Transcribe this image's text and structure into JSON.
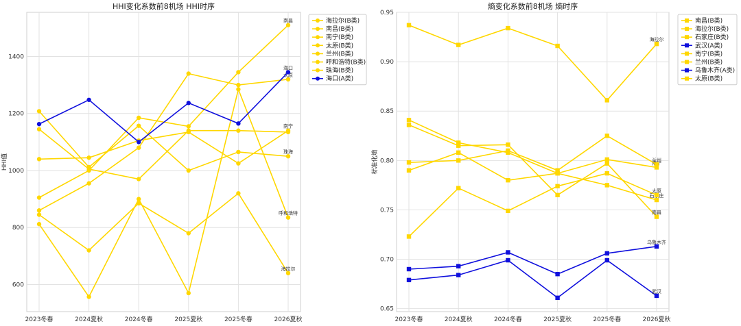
{
  "chart_data": [
    {
      "type": "line",
      "title": "HHI变化系数前8机场 HHI时序",
      "xlabel": "",
      "ylabel": "HHI值",
      "categories": [
        "2023冬春",
        "2024夏秋",
        "2024冬春",
        "2025夏秋",
        "2025冬春",
        "2026夏秋"
      ],
      "ylim": [
        505,
        1555
      ],
      "yticks": [
        600,
        800,
        1000,
        1200,
        1400
      ],
      "grid": true,
      "legend_position": "outside-right",
      "marker": "circle",
      "colors": {
        "B": "#FFD700",
        "A": "#1010DD"
      },
      "series": [
        {
          "name": "海拉尔(B类)",
          "class": "B",
          "end_label": "海拉尔",
          "values": [
            845,
            720,
            885,
            780,
            920,
            640
          ]
        },
        {
          "name": "南昌(B类)",
          "class": "B",
          "end_label": "南昌",
          "values": [
            905,
            1000,
            1185,
            1155,
            1345,
            1510
          ]
        },
        {
          "name": "南宁(B类)",
          "class": "B",
          "end_label": "南宁",
          "values": [
            1040,
            1045,
            1105,
            1135,
            1025,
            1140
          ]
        },
        {
          "name": "太原(B类)",
          "class": "B",
          "end_label": "太原",
          "values": [
            860,
            955,
            1080,
            1340,
            1300,
            1320
          ]
        },
        {
          "name": "兰州(B类)",
          "class": "B",
          "end_label": "",
          "values": [
            1145,
            1005,
            970,
            1140,
            1140,
            1135
          ]
        },
        {
          "name": "呼和浩特(B类)",
          "class": "B",
          "end_label": "呼和浩特",
          "values": [
            812,
            557,
            900,
            570,
            1285,
            835
          ]
        },
        {
          "name": "珠海(B类)",
          "class": "B",
          "end_label": "珠海",
          "values": [
            1208,
            1012,
            1157,
            1000,
            1065,
            1050
          ]
        },
        {
          "name": "海口(A类)",
          "class": "A",
          "end_label": "海口",
          "values": [
            1163,
            1248,
            1100,
            1237,
            1165,
            1345
          ]
        }
      ]
    },
    {
      "type": "line",
      "title": "熵变化系数前8机场 熵时序",
      "xlabel": "",
      "ylabel": "标准化熵",
      "categories": [
        "2023冬春",
        "2024夏秋",
        "2024冬春",
        "2025夏秋",
        "2025冬春",
        "2026夏秋"
      ],
      "ylim": [
        0.647,
        0.95
      ],
      "yticks": [
        0.65,
        0.7,
        0.75,
        0.8,
        0.85,
        0.9,
        0.95
      ],
      "grid": true,
      "legend_position": "outside-right",
      "marker": "square",
      "colors": {
        "B": "#FFD700",
        "A": "#1010DD"
      },
      "series": [
        {
          "name": "南昌(B类)",
          "class": "B",
          "end_label": "南昌",
          "values": [
            0.836,
            0.815,
            0.816,
            0.765,
            0.797,
            0.743
          ]
        },
        {
          "name": "海拉尔(B类)",
          "class": "B",
          "end_label": "海拉尔",
          "values": [
            0.937,
            0.917,
            0.934,
            0.916,
            0.861,
            0.918
          ]
        },
        {
          "name": "石家庄(B类)",
          "class": "B",
          "end_label": "石家庄",
          "values": [
            0.841,
            0.818,
            0.808,
            0.787,
            0.775,
            0.76
          ]
        },
        {
          "name": "武汉(A类)",
          "class": "A",
          "end_label": "武汉",
          "values": [
            0.679,
            0.684,
            0.699,
            0.661,
            0.699,
            0.663
          ]
        },
        {
          "name": "南宁(B类)",
          "class": "B",
          "end_label": "南宁",
          "values": [
            0.79,
            0.808,
            0.78,
            0.787,
            0.801,
            0.793
          ]
        },
        {
          "name": "兰州(B类)",
          "class": "B",
          "end_label": "兰州",
          "values": [
            0.798,
            0.8,
            0.81,
            0.79,
            0.825,
            0.796
          ]
        },
        {
          "name": "乌鲁木齐(A类)",
          "class": "A",
          "end_label": "乌鲁木齐",
          "values": [
            0.69,
            0.693,
            0.707,
            0.685,
            0.706,
            0.713
          ]
        },
        {
          "name": "太原(B类)",
          "class": "B",
          "end_label": "太原",
          "values": [
            0.723,
            0.772,
            0.749,
            0.774,
            0.787,
            0.765
          ]
        }
      ]
    }
  ]
}
